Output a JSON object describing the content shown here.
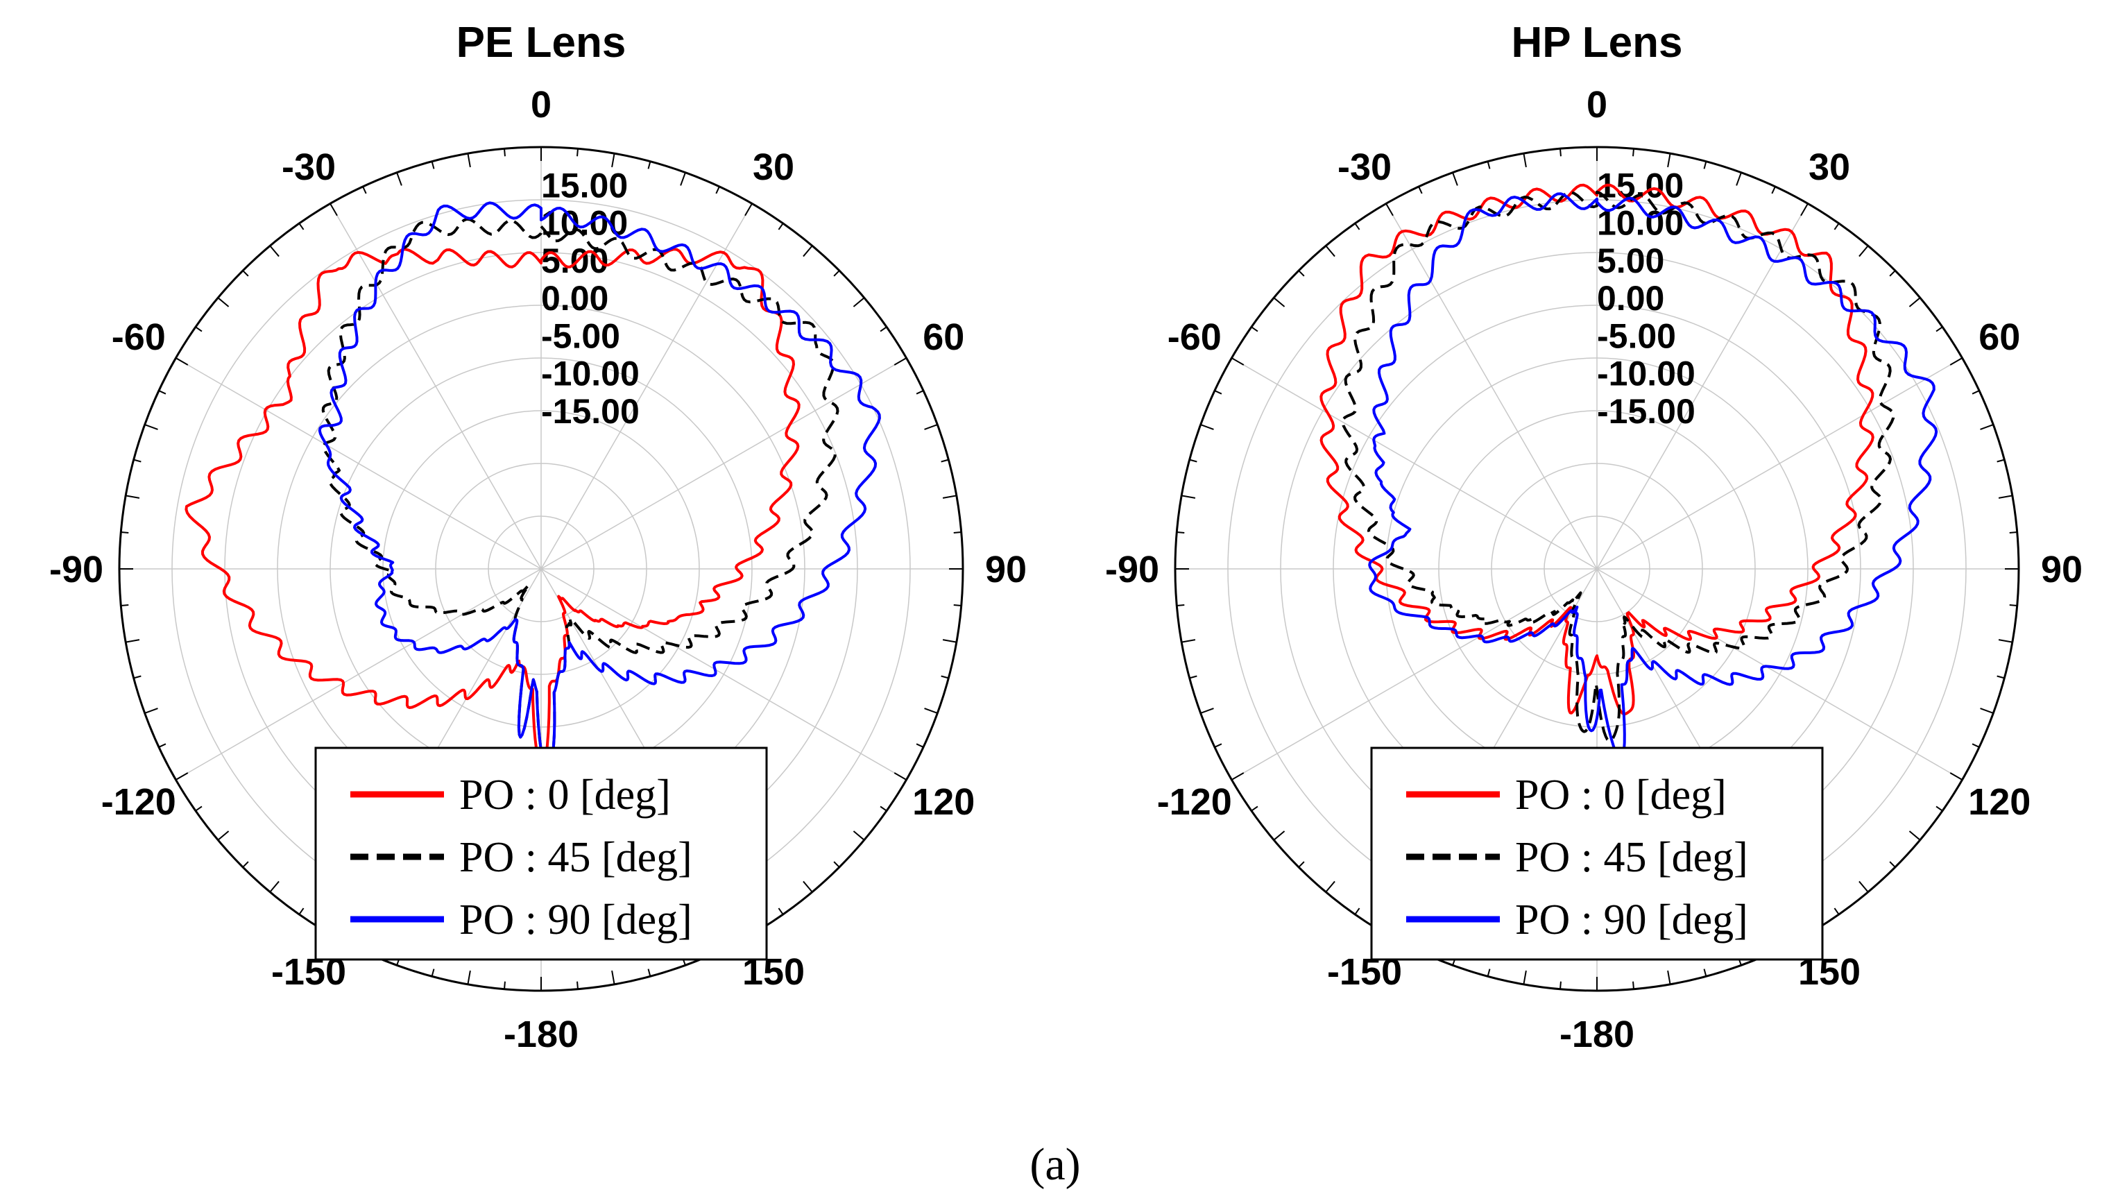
{
  "caption": "(a)",
  "colors": {
    "po0": "#ff0000",
    "po45": "#000000",
    "po90": "#0000ff",
    "grid": "#c8c8c8"
  },
  "chart_data": [
    {
      "type": "polar-line",
      "title": "PE Lens",
      "angle_labels": [
        "0",
        "30",
        "60",
        "90",
        "120",
        "150",
        "-180",
        "-150",
        "-120",
        "-90",
        "-60",
        "-30"
      ],
      "radial_labels": [
        "15.00",
        "10.00",
        "5.00",
        "0.00",
        "-5.00",
        "-10.00",
        "-15.00"
      ],
      "rlim": [
        -36,
        20
      ],
      "legend": [
        "PO : 0 [deg]",
        "PO : 45 [deg]",
        "PO : 90 [deg]"
      ],
      "series": [
        {
          "name": "PO : 0 [deg]",
          "lobes": [
            [
              0,
              5,
              34,
              13,
              1.0
            ],
            [
              -55,
              5,
              25,
              11,
              1.0
            ],
            [
              -90,
              -20,
              14,
              -18,
              0.5
            ],
            [
              102,
              -14,
              10,
              -18,
              0.5
            ],
            [
              70,
              -14,
              10,
              -18,
              0.5
            ],
            [
              -110,
              -18,
              10,
              -22,
              0.5
            ],
            [
              180,
              -10,
              4,
              -20,
              0.5
            ]
          ],
          "floor": -34
        },
        {
          "name": "PO : 45 [deg]",
          "lobes": [
            [
              15,
              8,
              36,
              12,
              1.0
            ],
            [
              -62,
              -6,
              13,
              -12,
              0.8
            ],
            [
              -95,
              -16,
              14,
              -20,
              0.5
            ],
            [
              90,
              -14,
              28,
              -16,
              0.5
            ],
            [
              178,
              -9,
              4,
              -20,
              0.5
            ],
            [
              -173,
              -14,
              3,
              -22,
              0.5
            ]
          ],
          "floor": -34
        },
        {
          "name": "PO : 90 [deg]",
          "lobes": [
            [
              24,
              10,
              40,
              13,
              1.0
            ],
            [
              -57,
              -2,
              10,
              -8,
              0.8
            ],
            [
              -105,
              -14,
              22,
              -18,
              0.5
            ],
            [
              92,
              -11,
              24,
              -14,
              0.5
            ],
            [
              178,
              -9,
              4,
              -20,
              0.5
            ],
            [
              -173,
              -14,
              3,
              -22,
              0.5
            ]
          ],
          "floor": -34
        }
      ]
    },
    {
      "type": "polar-line",
      "title": "HP Lens",
      "angle_labels": [
        "0",
        "30",
        "60",
        "90",
        "120",
        "150",
        "-180",
        "-150",
        "-120",
        "-90",
        "-60",
        "-30"
      ],
      "radial_labels": [
        "15.00",
        "10.00",
        "5.00",
        "0.00",
        "-5.00",
        "-10.00",
        "-15.00"
      ],
      "rlim": [
        -36,
        20
      ],
      "legend": [
        "PO : 0 [deg]",
        "PO : 45 [deg]",
        "PO : 90 [deg]"
      ],
      "series": [
        {
          "name": "PO : 0 [deg]",
          "lobes": [
            [
              0,
              14,
              36,
              15,
              1.0
            ],
            [
              85,
              -22,
              6,
              -26,
              0.3
            ],
            [
              -85,
              -22,
              6,
              -26,
              0.3
            ],
            [
              168,
              -16,
              6,
              -22,
              0.5
            ],
            [
              -170,
              -17,
              5,
              -22,
              0.5
            ]
          ],
          "floor": -34
        },
        {
          "name": "PO : 45 [deg]",
          "lobes": [
            [
              8,
              13,
              38,
              14,
              1.0
            ],
            [
              -65,
              -5,
              16,
              -10,
              0.8
            ],
            [
              -95,
              -14,
              14,
              -18,
              0.5
            ],
            [
              80,
              -10,
              22,
              -14,
              0.5
            ],
            [
              175,
              -13,
              6,
              -22,
              0.5
            ],
            [
              -175,
              -14,
              5,
              -22,
              0.5
            ]
          ],
          "floor": -34
        },
        {
          "name": "PO : 90 [deg]",
          "lobes": [
            [
              22,
              12,
              40,
              14,
              1.0
            ],
            [
              -55,
              -2,
              18,
              -8,
              0.8
            ],
            [
              -92,
              -6,
              14,
              -12,
              0.6
            ],
            [
              72,
              -4,
              20,
              -10,
              0.6
            ],
            [
              100,
              -5,
              16,
              -12,
              0.6
            ],
            [
              173,
              -11,
              5,
              -20,
              0.5
            ],
            [
              -178,
              -14,
              4,
              -22,
              0.5
            ]
          ],
          "floor": -34
        }
      ]
    }
  ]
}
